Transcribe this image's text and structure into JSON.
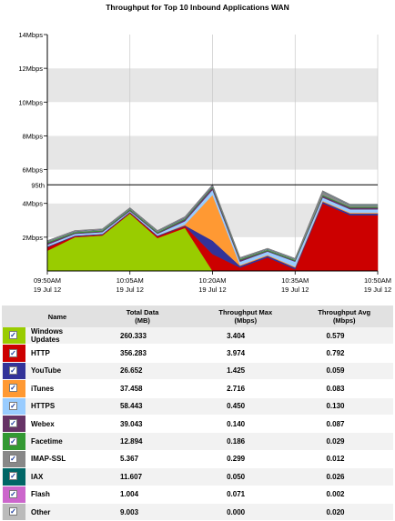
{
  "chart": {
    "title": "Throughput for Top 10 Inbound Applications WAN",
    "y_ticks": [
      "14Mbps",
      "12Mbps",
      "10Mbps",
      "8Mbps",
      "6Mbps",
      "4Mbps",
      "2Mbps"
    ],
    "x_ticks": [
      {
        "time": "09:50AM",
        "date": "19 Jul 12"
      },
      {
        "time": "10:05AM",
        "date": "19 Jul 12"
      },
      {
        "time": "10:20AM",
        "date": "19 Jul 12"
      },
      {
        "time": "10:35AM",
        "date": "19 Jul 12"
      },
      {
        "time": "10:50AM",
        "date": "19 Jul 12"
      }
    ],
    "percentile_label": "95th"
  },
  "chart_data": {
    "type": "area",
    "title": "Throughput for Top 10 Inbound Applications WAN",
    "xlabel": "",
    "ylabel": "",
    "ylim": [
      0,
      14
    ],
    "y_unit": "Mbps",
    "grid": true,
    "stacked": true,
    "x": [
      "09:50AM",
      "09:55AM",
      "10:00AM",
      "10:05AM",
      "10:10AM",
      "10:15AM",
      "10:20AM",
      "10:25AM",
      "10:30AM",
      "10:35AM",
      "10:40AM",
      "10:45AM",
      "10:50AM"
    ],
    "percentile_95": 5.1,
    "series": [
      {
        "name": "Windows Updates",
        "color": "#99cc00",
        "values": [
          1.2,
          2.0,
          2.1,
          3.4,
          1.95,
          2.55,
          0,
          0,
          0,
          0,
          0,
          0,
          0
        ]
      },
      {
        "name": "HTTP",
        "color": "#cc0000",
        "values": [
          0.2,
          0.05,
          0.05,
          0.05,
          0.1,
          0.1,
          1.0,
          0.2,
          0.8,
          0.1,
          4.0,
          3.3,
          3.3
        ]
      },
      {
        "name": "YouTube",
        "color": "#333399",
        "values": [
          0.05,
          0.05,
          0.05,
          0.05,
          0.05,
          0.05,
          0.8,
          0.1,
          0.1,
          0.1,
          0.1,
          0.1,
          0.1
        ]
      },
      {
        "name": "iTunes",
        "color": "#ff9933",
        "values": [
          0,
          0,
          0,
          0,
          0,
          0.05,
          2.7,
          0.05,
          0.05,
          0.05,
          0.05,
          0.05,
          0.05
        ]
      },
      {
        "name": "HTTPS",
        "color": "#99ccff",
        "values": [
          0.1,
          0.1,
          0.1,
          0.05,
          0.1,
          0.2,
          0.3,
          0.2,
          0.2,
          0.3,
          0.2,
          0.2,
          0.2
        ]
      },
      {
        "name": "Webex",
        "color": "#663366",
        "values": [
          0.1,
          0.05,
          0.05,
          0.05,
          0.05,
          0.1,
          0.14,
          0.1,
          0.05,
          0.05,
          0.1,
          0.1,
          0.1
        ]
      },
      {
        "name": "Facetime",
        "color": "#339933",
        "values": [
          0.05,
          0.05,
          0.05,
          0.05,
          0.05,
          0.05,
          0.05,
          0.05,
          0.05,
          0.05,
          0.05,
          0.05,
          0.05
        ]
      },
      {
        "name": "IMAP-SSL",
        "color": "#888888",
        "values": [
          0.05,
          0.05,
          0.05,
          0.05,
          0.05,
          0.05,
          0.05,
          0.05,
          0.05,
          0.05,
          0.2,
          0.1,
          0.1
        ]
      },
      {
        "name": "IAX",
        "color": "#006666",
        "values": [
          0.02,
          0.02,
          0.02,
          0.02,
          0.02,
          0.02,
          0.02,
          0.02,
          0.02,
          0.02,
          0.02,
          0.02,
          0.02
        ]
      },
      {
        "name": "Flash",
        "color": "#cc66cc",
        "values": [
          0,
          0,
          0,
          0,
          0,
          0.02,
          0.02,
          0,
          0,
          0,
          0,
          0,
          0
        ]
      },
      {
        "name": "Other",
        "color": "#bbbbbb",
        "values": [
          0.02,
          0.02,
          0.02,
          0.02,
          0.02,
          0.02,
          0.02,
          0.02,
          0.02,
          0.02,
          0.02,
          0.02,
          0.02
        ]
      }
    ]
  },
  "table": {
    "headers": {
      "name": "Name",
      "total": "Total Data\n(MB)",
      "max": "Throughput Max\n(Mbps)",
      "avg": "Throughput Avg\n(Mbps)"
    },
    "rows": [
      {
        "name": "Windows Updates",
        "color": "#99cc00",
        "checked": "✓",
        "total": "260.333",
        "max": "3.404",
        "avg": "0.579"
      },
      {
        "name": "HTTP",
        "color": "#cc0000",
        "checked": "✓",
        "total": "356.283",
        "max": "3.974",
        "avg": "0.792"
      },
      {
        "name": "YouTube",
        "color": "#333399",
        "checked": "✓",
        "total": "26.652",
        "max": "1.425",
        "avg": "0.059"
      },
      {
        "name": "iTunes",
        "color": "#ff9933",
        "checked": "✓",
        "total": "37.458",
        "max": "2.716",
        "avg": "0.083"
      },
      {
        "name": "HTTPS",
        "color": "#99ccff",
        "checked": "✓",
        "total": "58.443",
        "max": "0.450",
        "avg": "0.130"
      },
      {
        "name": "Webex",
        "color": "#663366",
        "checked": "✓",
        "total": "39.043",
        "max": "0.140",
        "avg": "0.087"
      },
      {
        "name": "Facetime",
        "color": "#339933",
        "checked": "✓",
        "total": "12.894",
        "max": "0.186",
        "avg": "0.029"
      },
      {
        "name": "IMAP-SSL",
        "color": "#888888",
        "checked": "✓",
        "total": "5.367",
        "max": "0.299",
        "avg": "0.012"
      },
      {
        "name": "IAX",
        "color": "#006666",
        "checked": "✓",
        "total": "11.607",
        "max": "0.050",
        "avg": "0.026"
      },
      {
        "name": "Flash",
        "color": "#cc66cc",
        "checked": "✓",
        "total": "1.004",
        "max": "0.071",
        "avg": "0.002"
      },
      {
        "name": "Other",
        "color": "#bbbbbb",
        "checked": "✓",
        "total": "9.003",
        "max": "0.000",
        "avg": "0.020"
      }
    ]
  }
}
